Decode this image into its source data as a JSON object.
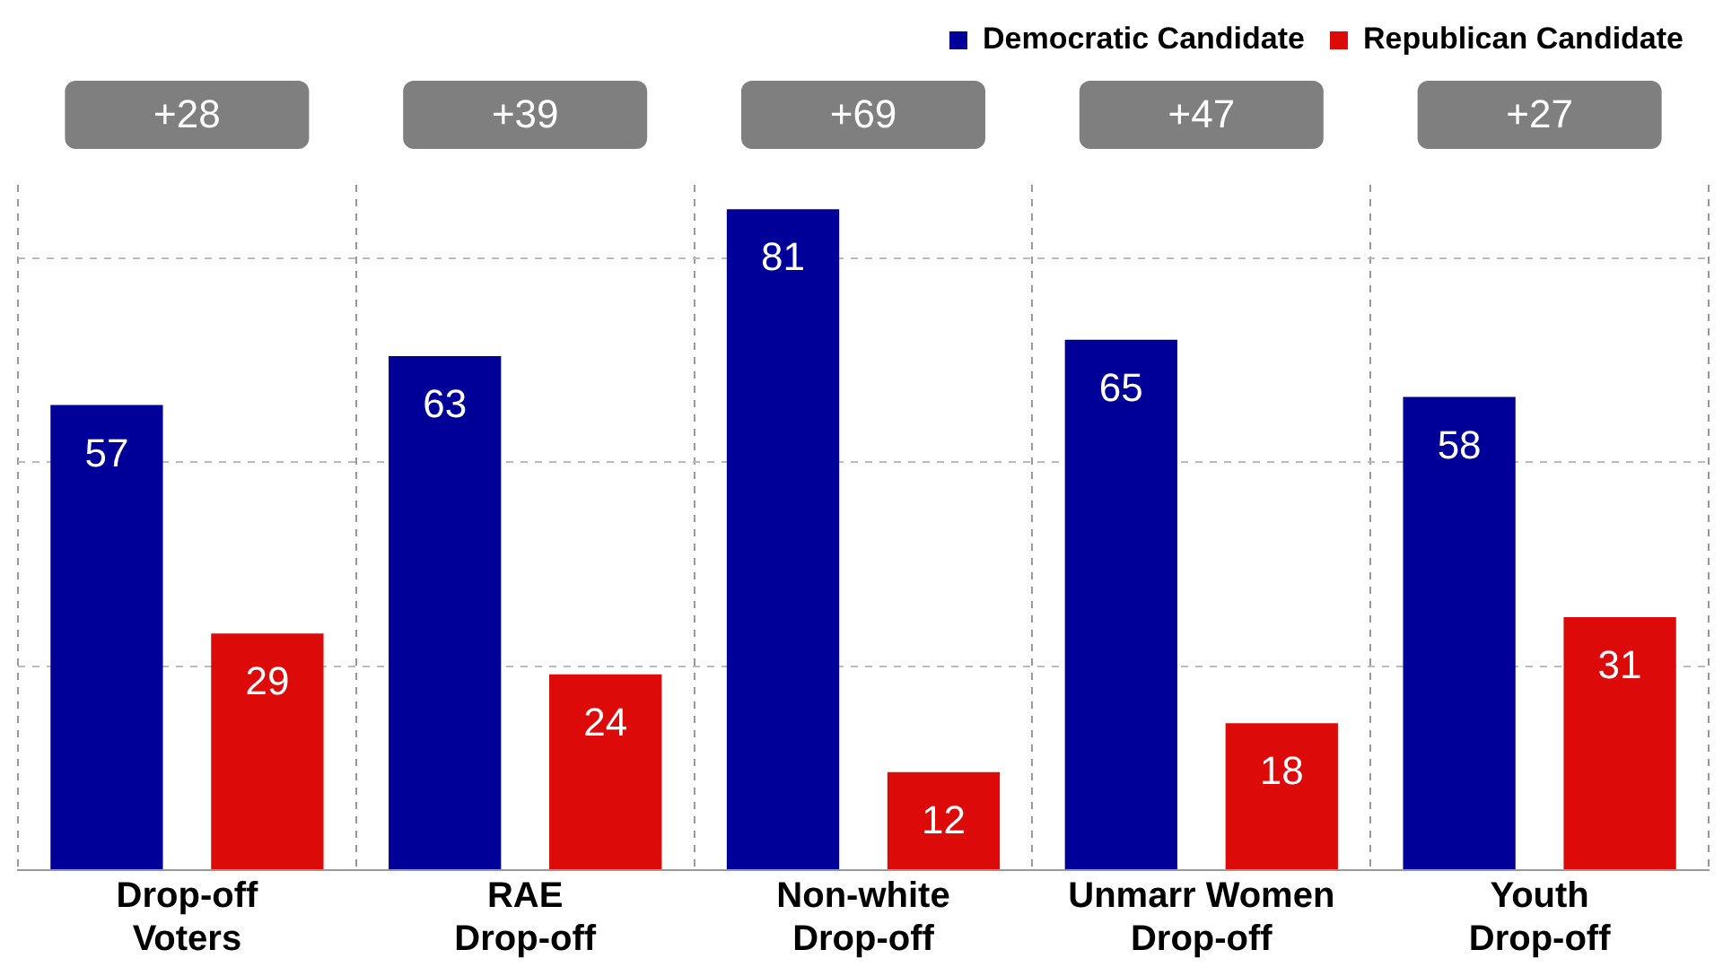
{
  "chart_data": {
    "type": "bar",
    "categories": [
      "Drop-off\nVoters",
      "RAE\nDrop-off",
      "Non-white\nDrop-off",
      "Unmarr Women\nDrop-off",
      "Youth\nDrop-off"
    ],
    "series": [
      {
        "name": "Democratic Candidate",
        "color": "#000099",
        "values": [
          57,
          63,
          81,
          65,
          58
        ]
      },
      {
        "name": "Republican Candidate",
        "color": "#dd0a0a",
        "values": [
          29,
          24,
          12,
          18,
          31
        ]
      }
    ],
    "ylim": [
      0,
      84
    ],
    "yticks": [
      {
        "value": 0,
        "label": null
      },
      {
        "value": 25,
        "label": null
      },
      {
        "value": 50,
        "label": null
      },
      {
        "value": 75,
        "label": null
      }
    ],
    "tick_labels": "x",
    "grid": true,
    "legend": "top right",
    "data_labels": true,
    "annotations": [
      "+28",
      "+39",
      "+69",
      "+47",
      "+27"
    ]
  }
}
